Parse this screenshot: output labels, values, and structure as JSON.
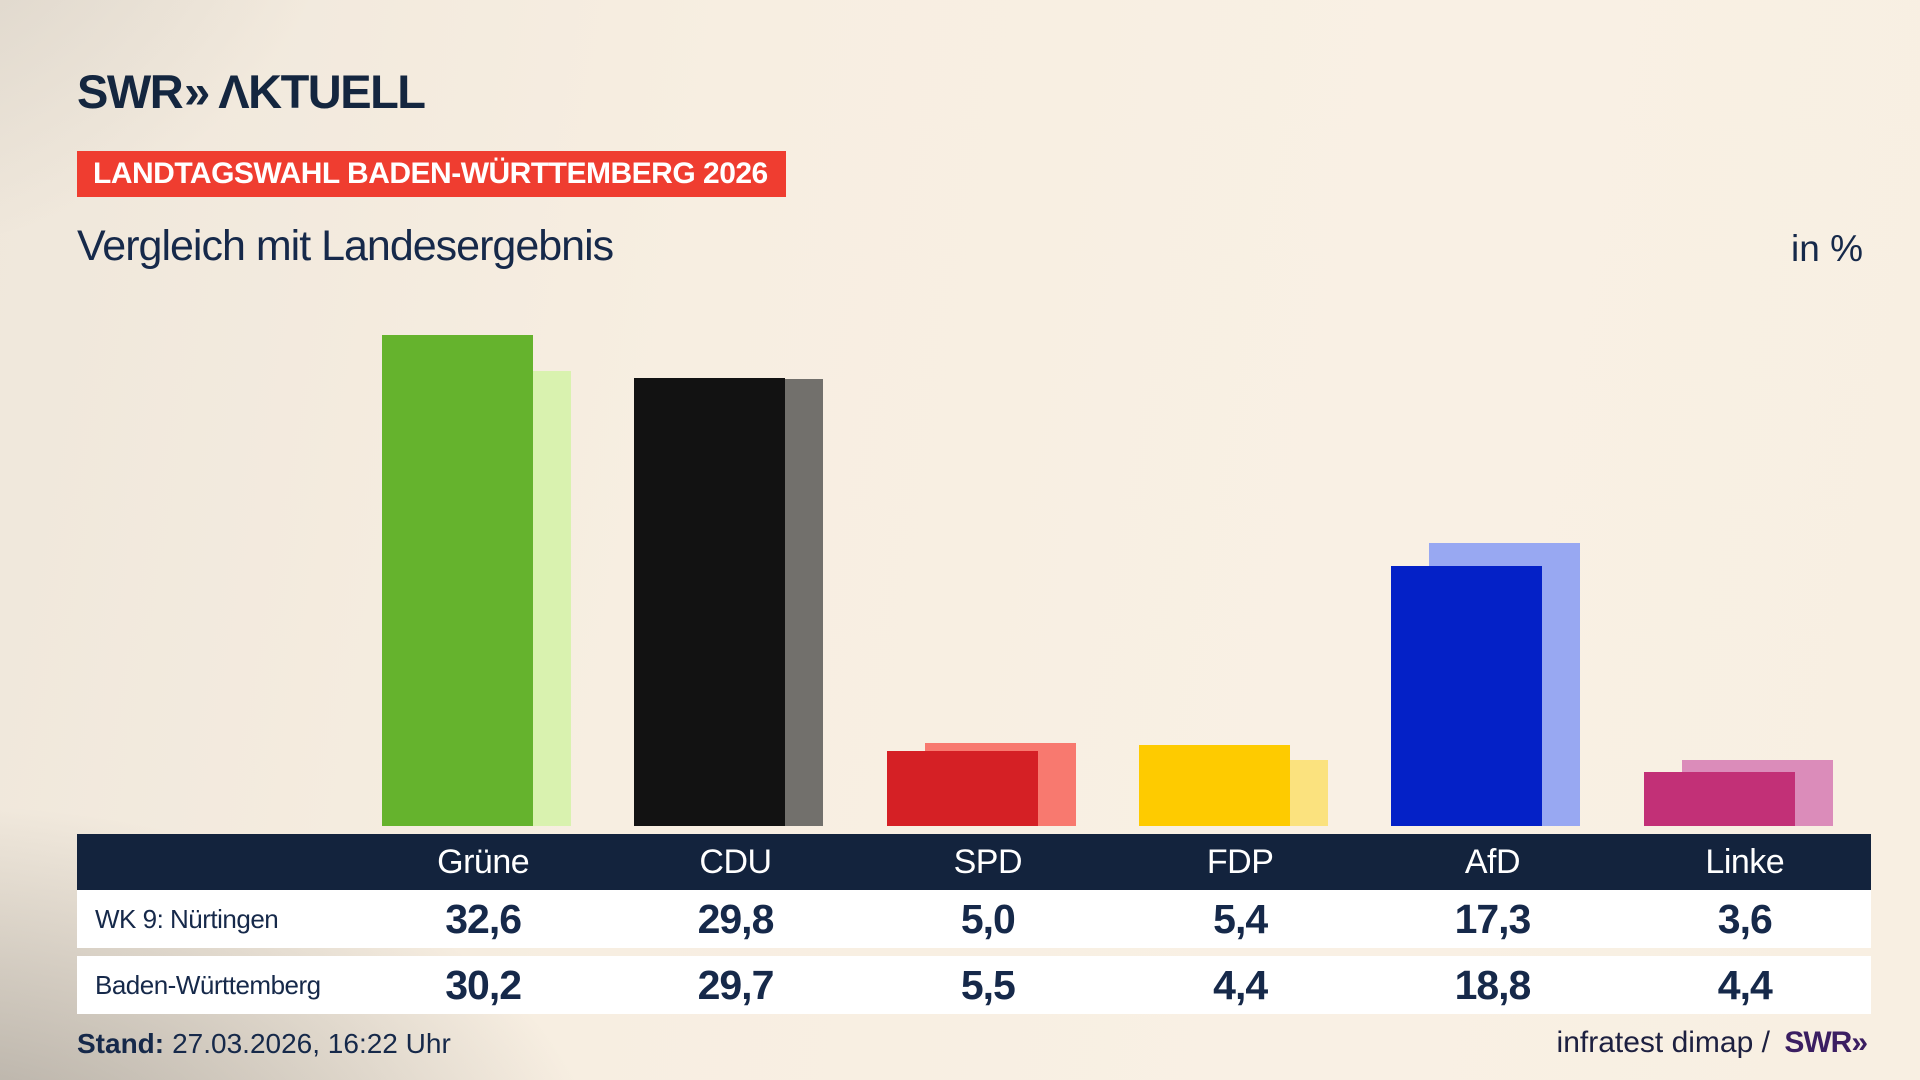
{
  "brand": {
    "logo_main": "SWR",
    "logo_chevrons": "»",
    "logo_suffix": "ΛKTUELL"
  },
  "badge": {
    "label": "LANDTAGSWAHL BADEN-WÜRTTEMBERG 2026",
    "bg_color": "#ef3d30",
    "text_color": "#ffffff"
  },
  "title": "Vergleich mit Landesergebnis",
  "unit_label": "in %",
  "chart_data": {
    "type": "bar",
    "title": "Vergleich mit Landesergebnis",
    "unit": "%",
    "categories": [
      "Grüne",
      "CDU",
      "SPD",
      "FDP",
      "AfD",
      "Linke"
    ],
    "series": [
      {
        "name": "WK 9: Nürtingen",
        "values": [
          32.6,
          29.8,
          5.0,
          5.4,
          17.3,
          3.6
        ]
      },
      {
        "name": "Baden-Württemberg",
        "values": [
          30.2,
          29.7,
          5.5,
          4.4,
          18.8,
          4.4
        ]
      }
    ],
    "party_colors": [
      {
        "party": "Grüne",
        "main": "#65b32d",
        "light": "#d9f2af"
      },
      {
        "party": "CDU",
        "main": "#121212",
        "light": "#72706c"
      },
      {
        "party": "SPD",
        "main": "#d52025",
        "light": "#f8796f"
      },
      {
        "party": "FDP",
        "main": "#fecb00",
        "light": "#fbe27e"
      },
      {
        "party": "AfD",
        "main": "#0421c7",
        "light": "#98a8f2"
      },
      {
        "party": "Linke",
        "main": "#c23077",
        "light": "#db8cba"
      }
    ],
    "ylim": [
      0,
      35
    ],
    "grid": false,
    "legend_position": "table-below",
    "axis_labels_visible": false
  },
  "table": {
    "header": [
      "Grüne",
      "CDU",
      "SPD",
      "FDP",
      "AfD",
      "Linke"
    ],
    "header_bg": "#13233d",
    "rows": [
      {
        "label": "WK 9: Nürtingen",
        "values": [
          "32,6",
          "29,8",
          "5,0",
          "5,4",
          "17,3",
          "3,6"
        ]
      },
      {
        "label": "Baden-Württemberg",
        "values": [
          "30,2",
          "29,7",
          "5,5",
          "4,4",
          "18,8",
          "4,4"
        ]
      }
    ]
  },
  "footer": {
    "stand_label": "Stand:",
    "stand_value": "27.03.2026, 16:22 Uhr",
    "source_text": "infratest dimap /",
    "source_brand_main": "SWR",
    "source_brand_chevrons": "»"
  }
}
